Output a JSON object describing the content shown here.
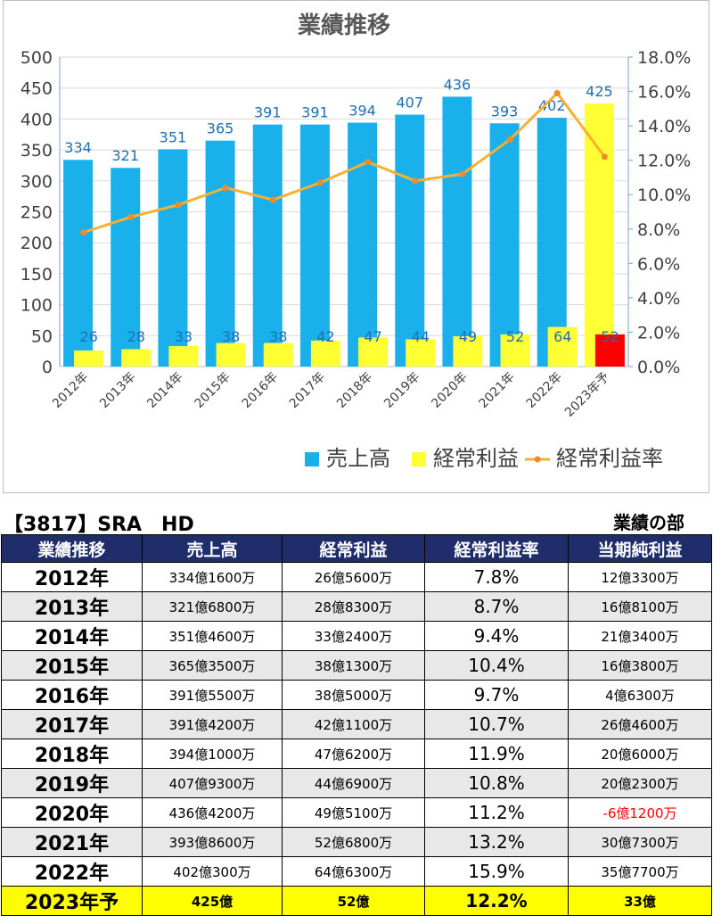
{
  "chart_data": {
    "type": "bar",
    "title": "業績推移",
    "categories": [
      "2012年",
      "2013年",
      "2014年",
      "2015年",
      "2016年",
      "2017年",
      "2018年",
      "2019年",
      "2020年",
      "2021年",
      "2022年",
      "2023年予"
    ],
    "series": [
      {
        "name": "売上高",
        "type": "bar",
        "axis": "left",
        "color": "#1ab0ec",
        "values": [
          334,
          321,
          351,
          365,
          391,
          391,
          394,
          407,
          436,
          393,
          402,
          425
        ]
      },
      {
        "name": "経常利益",
        "type": "bar",
        "axis": "left",
        "color": "#ffff33",
        "values": [
          26,
          28,
          33,
          38,
          38,
          42,
          47,
          44,
          49,
          52,
          64,
          52
        ]
      },
      {
        "name": "経常利益率",
        "type": "line",
        "axis": "right",
        "color": "#f7b032",
        "values": [
          7.8,
          8.7,
          9.4,
          10.4,
          9.7,
          10.7,
          11.9,
          10.8,
          11.2,
          13.2,
          15.9,
          12.2
        ]
      }
    ],
    "forecast_colors": {
      "売上高": "#ffff33",
      "経常利益": "#ff0000"
    },
    "ylim": [
      0,
      500
    ],
    "y_ticks": [
      "0",
      "50",
      "100",
      "150",
      "200",
      "250",
      "300",
      "350",
      "400",
      "450",
      "500"
    ],
    "y2lim": [
      0,
      18
    ],
    "y2_ticks": [
      "0.0%",
      "2.0%",
      "4.0%",
      "6.0%",
      "8.0%",
      "10.0%",
      "12.0%",
      "14.0%",
      "16.0%",
      "18.0%"
    ],
    "legend_position": "bottom-right",
    "grid": true
  },
  "heading": {
    "company": "【3817】SRA　HD",
    "section": "業績の部"
  },
  "table": {
    "columns": [
      "業績推移",
      "売上高",
      "経常利益",
      "経常利益率",
      "当期純利益"
    ],
    "rows": [
      [
        "2012年",
        "334億1600万",
        "26億5600万",
        "7.8%",
        "12億3300万"
      ],
      [
        "2013年",
        "321億6800万",
        "28億8300万",
        "8.7%",
        "16億8100万"
      ],
      [
        "2014年",
        "351億4600万",
        "33億2400万",
        "9.4%",
        "21億3400万"
      ],
      [
        "2015年",
        "365億3500万",
        "38億1300万",
        "10.4%",
        "16億3800万"
      ],
      [
        "2016年",
        "391億5500万",
        "38億5000万",
        "9.7%",
        "4億6300万"
      ],
      [
        "2017年",
        "391億4200万",
        "42億1100万",
        "10.7%",
        "26億4600万"
      ],
      [
        "2018年",
        "394億1000万",
        "47億6200万",
        "11.9%",
        "20億6000万"
      ],
      [
        "2019年",
        "407億9300万",
        "44億6900万",
        "10.8%",
        "20億2300万"
      ],
      [
        "2020年",
        "436億4200万",
        "49億5100万",
        "11.2%",
        "-6億1200万"
      ],
      [
        "2021年",
        "393億8600万",
        "52億6800万",
        "13.2%",
        "30億7300万"
      ],
      [
        "2022年",
        "402億300万",
        "64億6300万",
        "15.9%",
        "35億7700万"
      ],
      [
        "2023年予",
        "425億",
        "52億",
        "12.2%",
        "33億"
      ]
    ]
  }
}
